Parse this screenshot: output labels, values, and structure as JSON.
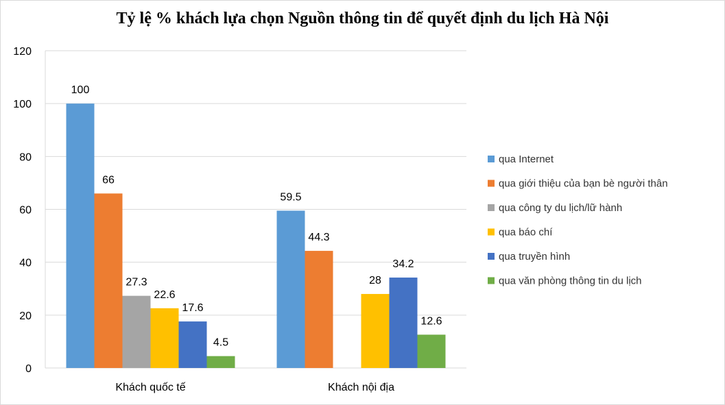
{
  "chart_data": {
    "type": "bar",
    "title": "Tỷ lệ % khách lựa chọn Nguồn thông tin để quyết định du lịch Hà Nội",
    "xlabel": "",
    "ylabel": "",
    "ylim": [
      0,
      120
    ],
    "yticks": [
      0,
      20,
      40,
      60,
      80,
      100,
      120
    ],
    "grid": true,
    "legend": "right",
    "categories": [
      "Khách quốc tế",
      "Khách nội địa"
    ],
    "series": [
      {
        "name": "qua Internet",
        "color": "#5b9bd5",
        "values": [
          100,
          59.5
        ]
      },
      {
        "name": "qua giới thiệu của bạn bè người thân",
        "color": "#ed7d31",
        "values": [
          66,
          44.3
        ]
      },
      {
        "name": "qua công ty du lịch/lữ hành",
        "color": "#a5a5a5",
        "values": [
          27.3,
          null
        ]
      },
      {
        "name": "qua báo chí",
        "color": "#ffc000",
        "values": [
          22.6,
          28
        ]
      },
      {
        "name": "qua truyền hình",
        "color": "#4472c4",
        "values": [
          17.6,
          34.2
        ]
      },
      {
        "name": "qua văn phòng thông tin du lịch",
        "color": "#70ad47",
        "values": [
          4.5,
          12.6
        ]
      }
    ]
  }
}
